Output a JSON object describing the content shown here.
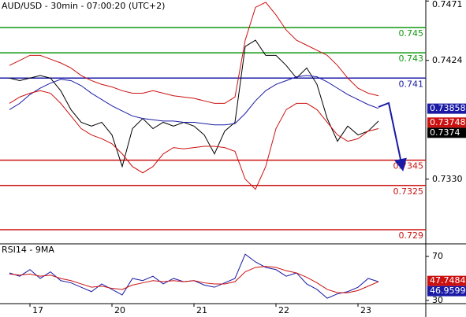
{
  "chart_data": [
    {
      "type": "line",
      "title": "AUD/USD - 30min - 07:00:20 (UTC+2)",
      "categories": [
        null,
        null,
        "17",
        null,
        null,
        null,
        null,
        null,
        null,
        null,
        "20",
        null,
        null,
        null,
        null,
        null,
        null,
        null,
        "21",
        null,
        null,
        null,
        null,
        null,
        null,
        null,
        "22",
        null,
        null,
        null,
        null,
        null,
        null,
        null,
        "23",
        null,
        null
      ],
      "series": [
        {
          "color": "#000000",
          "values": [
            0.741,
            0.7408,
            0.741,
            0.7412,
            0.741,
            0.74,
            0.7385,
            0.7375,
            0.7372,
            0.7375,
            0.7365,
            0.734,
            0.737,
            0.7378,
            0.737,
            0.7375,
            0.7372,
            0.7375,
            0.7372,
            0.7365,
            0.735,
            0.7368,
            0.7375,
            0.7435,
            0.744,
            0.7428,
            0.7428,
            0.742,
            0.741,
            0.7418,
            0.7405,
            0.7378,
            0.736,
            0.7372,
            0.7365,
            0.7368,
            0.7376
          ]
        },
        {
          "color": "#1a1aa6",
          "values": [
            0.7385,
            0.739,
            0.7397,
            0.7402,
            0.7406,
            0.7409,
            0.7408,
            0.7404,
            0.7398,
            0.7393,
            0.7388,
            0.7384,
            0.738,
            0.7378,
            0.7377,
            0.7376,
            0.7376,
            0.7375,
            0.7375,
            0.7374,
            0.7373,
            0.7373,
            0.7374,
            0.7382,
            0.7392,
            0.74,
            0.7405,
            0.7408,
            0.7411,
            0.7412,
            0.7411,
            0.7407,
            0.7402,
            0.7397,
            0.7393,
            0.7389,
            0.7386
          ]
        },
        {
          "color": "#cc1111",
          "values": [
            0.742,
            0.7424,
            0.7428,
            0.7428,
            0.7425,
            0.7422,
            0.7418,
            0.7412,
            0.7408,
            0.7405,
            0.7403,
            0.74,
            0.7398,
            0.7398,
            0.74,
            0.7398,
            0.7396,
            0.7395,
            0.7394,
            0.7392,
            0.739,
            0.739,
            0.7395,
            0.744,
            0.7466,
            0.747,
            0.746,
            0.7448,
            0.744,
            0.7436,
            0.7432,
            0.7428,
            0.742,
            0.741,
            0.7402,
            0.7398,
            0.7396
          ]
        },
        {
          "color": "#cc1111",
          "values": [
            0.739,
            0.7395,
            0.7398,
            0.74,
            0.7398,
            0.739,
            0.738,
            0.737,
            0.7365,
            0.7362,
            0.7358,
            0.735,
            0.734,
            0.7335,
            0.734,
            0.735,
            0.7355,
            0.7354,
            0.7355,
            0.7356,
            0.7356,
            0.7355,
            0.7352,
            0.733,
            0.7322,
            0.734,
            0.737,
            0.7385,
            0.739,
            0.739,
            0.7385,
            0.7375,
            0.7365,
            0.736,
            0.7362,
            0.7368,
            0.737
          ]
        }
      ],
      "ylim": [
        0.72788,
        0.74718
      ],
      "yticks": [
        {
          "value": 0.733,
          "label": "0.7330"
        },
        0.7424,
        0.7471
      ],
      "levels": [
        {
          "value": 0.745,
          "color": "#119911"
        },
        {
          "value": 0.743,
          "color": "#119911"
        },
        {
          "value": 0.741,
          "color": "#1a1aa6"
        },
        {
          "value": 0.7345,
          "color": "#cc1111"
        },
        {
          "value": 0.7325,
          "color": "#cc1111"
        },
        {
          "value": 0.729,
          "color": "#cc1111"
        }
      ],
      "markers": [
        {
          "value": 0.73858,
          "color": "#1a1aa6"
        },
        {
          "value": 0.73748,
          "color": "#cc1111"
        },
        {
          "value": 0.7374,
          "color": "#000000"
        }
      ]
    },
    {
      "type": "line",
      "title": "RSI14 - 9MA",
      "series": [
        {
          "color": "#1a1aa6",
          "values": [
            55,
            52,
            58,
            50,
            56,
            48,
            46,
            42,
            38,
            45,
            40,
            35,
            50,
            48,
            52,
            45,
            50,
            47,
            48,
            44,
            42,
            46,
            50,
            72,
            65,
            60,
            58,
            52,
            55,
            45,
            40,
            32,
            36,
            38,
            42,
            50,
            47
          ]
        },
        {
          "color": "#cc1111",
          "values": [
            54,
            53,
            54,
            52,
            53,
            50,
            48,
            45,
            42,
            43,
            41,
            40,
            44,
            46,
            48,
            47,
            48,
            47,
            48,
            46,
            45,
            45,
            47,
            56,
            60,
            61,
            60,
            57,
            55,
            51,
            46,
            40,
            37,
            37,
            39,
            43,
            47
          ]
        }
      ],
      "ylim": [
        27.1,
        80
      ],
      "yticks": [
        30,
        70
      ],
      "markers": [
        {
          "value": 47.7484,
          "color": "#cc1111"
        },
        {
          "value": 46.9599,
          "color": "#1a1aa6"
        }
      ]
    }
  ]
}
